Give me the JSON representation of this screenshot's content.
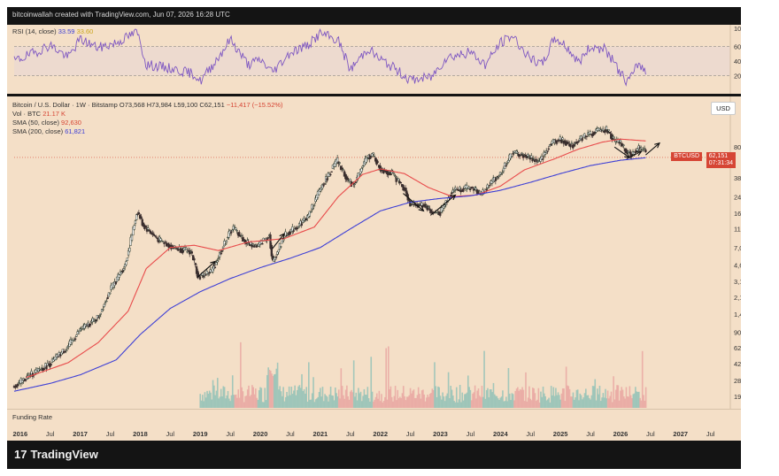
{
  "header": {
    "attribution": "bitcoinwallah created with TradingView.com, Jun 07, 2026 16:28 UTC"
  },
  "rsi": {
    "label": "RSI (14, close)",
    "value1": "33.59",
    "value2": "33.60",
    "ticks": [
      "100.00",
      "60.00",
      "40.00",
      "20.00"
    ]
  },
  "legend": {
    "title": "Bitcoin / U.S. Dollar · 1W · Bitstamp",
    "o": "O73,568",
    "h": "H73,984",
    "l": "L59,100",
    "c": "C62,151",
    "change": "−11,417 (−15.52%)",
    "vol_label": "Vol · BTC",
    "vol_value": "21.17 K",
    "sma50_label": "SMA (50, close)",
    "sma50_value": "92,630",
    "sma200_label": "SMA (200, close)",
    "sma200_value": "61,821"
  },
  "currency_button": "USD",
  "price_tag": {
    "symbol": "BTCUSD",
    "price": "62,151",
    "countdown": "07:31:34"
  },
  "funding_label": "Funding Rate",
  "footer": {
    "logo_text": "TradingView",
    "logo_mark": "17"
  },
  "colors": {
    "background": "#f4dfc7",
    "frame": "#141414",
    "sma50": "#e84b4b",
    "sma200": "#3d3fd6",
    "rsi_line": "#7e57c2",
    "rsi_band": "#e7d6d6",
    "candle_up": "#2e3a2e",
    "candle_down": "#3a2e2e",
    "vol_up": "#8fc1b6",
    "vol_down": "#e9a4a0"
  },
  "chart_data": {
    "type": "candlestick",
    "scale": "log",
    "y_ticks": [
      80000,
      38000,
      24000,
      16000,
      11000,
      7000,
      4600,
      3100,
      2100,
      1400,
      900,
      620,
      420,
      280,
      190
    ],
    "y_tick_labels": [
      "80,000",
      "38,000",
      "24,000",
      "16,000",
      "11,000",
      "7,000",
      "4,600",
      "3,100",
      "2,100",
      "1,400",
      "900",
      "620",
      "420",
      "280",
      "190"
    ],
    "x_ticks": [
      "2016",
      "Jul",
      "2017",
      "Jul",
      "2018",
      "Jul",
      "2019",
      "Jul",
      "2020",
      "Jul",
      "2021",
      "Jul",
      "2022",
      "Jul",
      "2023",
      "Jul",
      "2024",
      "Jul",
      "2025",
      "Jul",
      "2026",
      "Jul",
      "2027",
      "Jul"
    ],
    "x_tick_years": [
      2016.0,
      2016.5,
      2017.0,
      2017.5,
      2018.0,
      2018.5,
      2019.0,
      2019.5,
      2020.0,
      2020.5,
      2021.0,
      2021.5,
      2022.0,
      2022.5,
      2023.0,
      2023.5,
      2024.0,
      2024.5,
      2025.0,
      2025.5,
      2026.0,
      2026.5,
      2027.0,
      2027.5
    ],
    "price_path": [
      [
        2015.9,
        240
      ],
      [
        2016.2,
        330
      ],
      [
        2016.5,
        420
      ],
      [
        2016.8,
        640
      ],
      [
        2017.0,
        950
      ],
      [
        2017.3,
        1300
      ],
      [
        2017.5,
        2500
      ],
      [
        2017.75,
        4600
      ],
      [
        2017.95,
        17000
      ],
      [
        2018.05,
        12000
      ],
      [
        2018.3,
        8500
      ],
      [
        2018.55,
        7000
      ],
      [
        2018.85,
        6300
      ],
      [
        2018.97,
        3400
      ],
      [
        2019.2,
        4000
      ],
      [
        2019.45,
        9000
      ],
      [
        2019.55,
        11500
      ],
      [
        2019.75,
        8000
      ],
      [
        2019.95,
        7200
      ],
      [
        2020.15,
        9500
      ],
      [
        2020.2,
        4800
      ],
      [
        2020.4,
        9300
      ],
      [
        2020.6,
        11500
      ],
      [
        2020.8,
        15000
      ],
      [
        2021.0,
        29000
      ],
      [
        2021.28,
        58000
      ],
      [
        2021.45,
        36000
      ],
      [
        2021.55,
        32000
      ],
      [
        2021.78,
        62000
      ],
      [
        2021.87,
        67000
      ],
      [
        2022.0,
        47000
      ],
      [
        2022.2,
        42000
      ],
      [
        2022.4,
        29000
      ],
      [
        2022.5,
        20000
      ],
      [
        2022.75,
        19500
      ],
      [
        2022.87,
        16000
      ],
      [
        2023.0,
        16500
      ],
      [
        2023.2,
        28000
      ],
      [
        2023.5,
        30000
      ],
      [
        2023.7,
        26000
      ],
      [
        2023.9,
        37000
      ],
      [
        2024.0,
        42000
      ],
      [
        2024.2,
        70000
      ],
      [
        2024.5,
        62000
      ],
      [
        2024.65,
        55000
      ],
      [
        2024.85,
        90000
      ],
      [
        2025.0,
        95000
      ],
      [
        2025.2,
        84000
      ],
      [
        2025.4,
        105000
      ],
      [
        2025.6,
        118000
      ],
      [
        2025.78,
        122000
      ],
      [
        2025.9,
        92000
      ],
      [
        2026.0,
        88000
      ],
      [
        2026.1,
        72000
      ],
      [
        2026.2,
        68000
      ],
      [
        2026.3,
        78000
      ],
      [
        2026.4,
        73568
      ],
      [
        2026.43,
        62151
      ]
    ],
    "series": [
      {
        "name": "SMA (50, close)",
        "points": [
          [
            2016.1,
            300
          ],
          [
            2016.8,
            430
          ],
          [
            2017.3,
            700
          ],
          [
            2017.8,
            1500
          ],
          [
            2018.1,
            4200
          ],
          [
            2018.5,
            7000
          ],
          [
            2018.9,
            7400
          ],
          [
            2019.3,
            6500
          ],
          [
            2019.8,
            8000
          ],
          [
            2020.4,
            8700
          ],
          [
            2020.9,
            11500
          ],
          [
            2021.3,
            24000
          ],
          [
            2021.7,
            41000
          ],
          [
            2022.0,
            47000
          ],
          [
            2022.4,
            42000
          ],
          [
            2022.8,
            30000
          ],
          [
            2023.2,
            24000
          ],
          [
            2023.6,
            25000
          ],
          [
            2024.0,
            31000
          ],
          [
            2024.4,
            46000
          ],
          [
            2024.9,
            60000
          ],
          [
            2025.3,
            76000
          ],
          [
            2025.7,
            90000
          ],
          [
            2026.0,
            97000
          ],
          [
            2026.43,
            92630
          ]
        ]
      },
      {
        "name": "SMA (200, close)",
        "points": [
          [
            2015.9,
            215
          ],
          [
            2016.5,
            260
          ],
          [
            2017.0,
            320
          ],
          [
            2017.6,
            460
          ],
          [
            2018.0,
            850
          ],
          [
            2018.5,
            1600
          ],
          [
            2019.0,
            2400
          ],
          [
            2019.5,
            3300
          ],
          [
            2020.0,
            4300
          ],
          [
            2020.5,
            5400
          ],
          [
            2021.0,
            7000
          ],
          [
            2021.5,
            11000
          ],
          [
            2022.0,
            17000
          ],
          [
            2022.5,
            21000
          ],
          [
            2023.0,
            23000
          ],
          [
            2023.5,
            24500
          ],
          [
            2024.0,
            28000
          ],
          [
            2024.5,
            34000
          ],
          [
            2025.0,
            42000
          ],
          [
            2025.5,
            51000
          ],
          [
            2026.0,
            58000
          ],
          [
            2026.43,
            61821
          ]
        ]
      }
    ],
    "rsi_path": [
      [
        2015.9,
        50
      ],
      [
        2016.2,
        60
      ],
      [
        2016.5,
        72
      ],
      [
        2016.8,
        55
      ],
      [
        2017.0,
        80
      ],
      [
        2017.3,
        68
      ],
      [
        2017.6,
        75
      ],
      [
        2017.95,
        90
      ],
      [
        2018.1,
        45
      ],
      [
        2018.5,
        40
      ],
      [
        2018.9,
        32
      ],
      [
        2019.0,
        22
      ],
      [
        2019.3,
        55
      ],
      [
        2019.5,
        80
      ],
      [
        2019.8,
        45
      ],
      [
        2020.0,
        52
      ],
      [
        2020.2,
        35
      ],
      [
        2020.5,
        62
      ],
      [
        2020.8,
        72
      ],
      [
        2021.0,
        88
      ],
      [
        2021.3,
        78
      ],
      [
        2021.5,
        38
      ],
      [
        2021.8,
        68
      ],
      [
        2021.95,
        55
      ],
      [
        2022.2,
        42
      ],
      [
        2022.5,
        24
      ],
      [
        2022.85,
        28
      ],
      [
        2023.1,
        55
      ],
      [
        2023.5,
        62
      ],
      [
        2023.75,
        45
      ],
      [
        2024.0,
        75
      ],
      [
        2024.2,
        85
      ],
      [
        2024.5,
        52
      ],
      [
        2024.7,
        45
      ],
      [
        2024.9,
        82
      ],
      [
        2025.1,
        70
      ],
      [
        2025.3,
        48
      ],
      [
        2025.5,
        70
      ],
      [
        2025.75,
        66
      ],
      [
        2025.95,
        40
      ],
      [
        2026.1,
        22
      ],
      [
        2026.2,
        30
      ],
      [
        2026.3,
        48
      ],
      [
        2026.43,
        33.59
      ]
    ],
    "rsi_levels": [
      70,
      30
    ],
    "volume_start_year": 2019.0,
    "annotations": [
      {
        "type": "arrow",
        "from": [
          2018.95,
          3400
        ],
        "to": [
          2019.25,
          5000
        ]
      },
      {
        "type": "arrow",
        "from": [
          2020.2,
          6800
        ],
        "to": [
          2020.4,
          9800
        ]
      },
      {
        "type": "arrow",
        "from": [
          2022.38,
          26000
        ],
        "to": [
          2022.72,
          17000
        ]
      },
      {
        "type": "arrow",
        "from": [
          2022.85,
          15500
        ],
        "to": [
          2023.25,
          25000
        ]
      },
      {
        "type": "arrow",
        "from": [
          2025.9,
          80000
        ],
        "to": [
          2026.15,
          62000
        ]
      },
      {
        "type": "arrow",
        "from": [
          2026.1,
          60000
        ],
        "to": [
          2026.35,
          72000
        ]
      },
      {
        "type": "arrow",
        "from": [
          2026.42,
          66000
        ],
        "to": [
          2026.65,
          88000
        ]
      }
    ],
    "current_price": 62151
  }
}
